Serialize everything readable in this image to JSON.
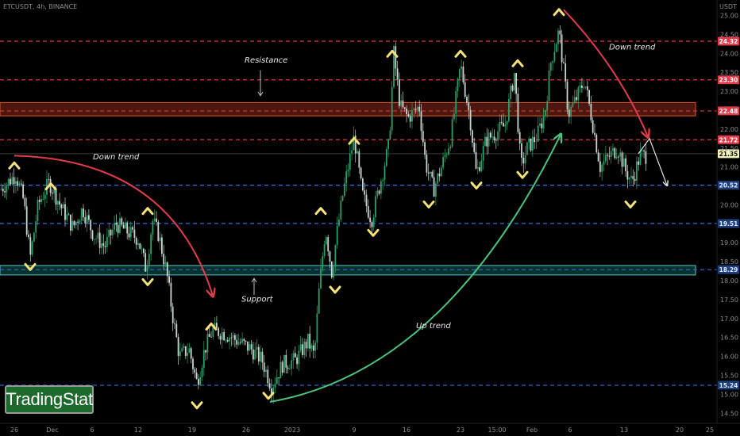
{
  "header": {
    "title": "ETCUSDT, 4h, BINANCE",
    "currency": "USDT"
  },
  "logo": {
    "text": "TradingStat"
  },
  "colors": {
    "background": "#000000",
    "candle_up": "#2e9e68",
    "candle_down": "#c8d6cf",
    "resistance": "#e03a3a",
    "support": "#2f6fd6",
    "zone_red_fill": "#5a1a10",
    "zone_green_fill": "#0a3a36",
    "arrow_red": "#e23c4c",
    "arrow_green": "#4cc27a",
    "pivot": "#f5e27a"
  },
  "chart_data": {
    "type": "candlestick",
    "symbol": "ETCUSDT",
    "timeframe": "4h",
    "exchange": "BINANCE",
    "y_range": [
      14.35,
      25.25
    ],
    "x_domain": [
      0,
      912
    ],
    "y_ticks": [
      "25.00",
      "24.50",
      "24.00",
      "23.50",
      "23.00",
      "22.50",
      "22.00",
      "21.50",
      "21.00",
      "20.50",
      "20.00",
      "19.50",
      "19.00",
      "18.50",
      "18.00",
      "17.50",
      "17.00",
      "16.50",
      "16.00",
      "15.50",
      "15.00",
      "14.50"
    ],
    "x_ticks": [
      {
        "label": "26",
        "x": 18
      },
      {
        "label": "Dec",
        "x": 66
      },
      {
        "label": "6",
        "x": 116
      },
      {
        "label": "12",
        "x": 174
      },
      {
        "label": "19",
        "x": 242
      },
      {
        "label": "26",
        "x": 310
      },
      {
        "label": "2023",
        "x": 368
      },
      {
        "label": "9",
        "x": 446
      },
      {
        "label": "16",
        "x": 512
      },
      {
        "label": "23",
        "x": 580
      },
      {
        "label": "15:00",
        "x": 626
      },
      {
        "label": "Feb",
        "x": 670
      },
      {
        "label": "6",
        "x": 718
      },
      {
        "label": "13",
        "x": 786
      },
      {
        "label": "20",
        "x": 856
      },
      {
        "label": "25",
        "x": 894
      }
    ],
    "price_levels": [
      {
        "value": 24.32,
        "label": "24.32",
        "kind": "resistance"
      },
      {
        "value": 23.3,
        "label": "23.30",
        "kind": "resistance"
      },
      {
        "value": 22.48,
        "label": "22.48",
        "kind": "resistance"
      },
      {
        "value": 21.72,
        "label": "21.72",
        "kind": "resistance"
      },
      {
        "value": 20.52,
        "label": "20.52",
        "kind": "support"
      },
      {
        "value": 19.51,
        "label": "19.51",
        "kind": "support"
      },
      {
        "value": 18.29,
        "label": "18.29",
        "kind": "support"
      },
      {
        "value": 15.24,
        "label": "15.24",
        "kind": "support"
      }
    ],
    "current_price": {
      "value": 21.35,
      "label": "21.35"
    },
    "zones": [
      {
        "kind": "resistance",
        "top": 22.7,
        "bottom": 22.35
      },
      {
        "kind": "support",
        "top": 18.4,
        "bottom": 18.15
      }
    ],
    "price_path": [
      [
        0,
        20.4
      ],
      [
        20,
        20.8
      ],
      [
        30,
        20.1
      ],
      [
        38,
        18.6
      ],
      [
        48,
        20.0
      ],
      [
        62,
        20.6
      ],
      [
        78,
        19.9
      ],
      [
        92,
        19.4
      ],
      [
        104,
        19.9
      ],
      [
        118,
        19.2
      ],
      [
        132,
        18.9
      ],
      [
        146,
        19.5
      ],
      [
        160,
        19.3
      ],
      [
        174,
        19.1
      ],
      [
        184,
        18.3
      ],
      [
        192,
        19.6
      ],
      [
        200,
        19.2
      ],
      [
        210,
        18.2
      ],
      [
        218,
        17.0
      ],
      [
        226,
        16.0
      ],
      [
        238,
        16.2
      ],
      [
        248,
        15.3
      ],
      [
        258,
        16.2
      ],
      [
        268,
        16.7
      ],
      [
        284,
        16.6
      ],
      [
        300,
        16.4
      ],
      [
        316,
        16.2
      ],
      [
        330,
        15.9
      ],
      [
        342,
        15.2
      ],
      [
        356,
        15.8
      ],
      [
        372,
        15.9
      ],
      [
        388,
        16.4
      ],
      [
        396,
        16.0
      ],
      [
        402,
        17.8
      ],
      [
        410,
        19.4
      ],
      [
        418,
        18.2
      ],
      [
        424,
        19.2
      ],
      [
        432,
        20.3
      ],
      [
        446,
        21.8
      ],
      [
        456,
        20.3
      ],
      [
        468,
        19.6
      ],
      [
        478,
        20.5
      ],
      [
        490,
        21.6
      ],
      [
        496,
        24.0
      ],
      [
        504,
        22.6
      ],
      [
        514,
        22.3
      ],
      [
        528,
        22.6
      ],
      [
        536,
        21.1
      ],
      [
        546,
        20.4
      ],
      [
        556,
        21.0
      ],
      [
        568,
        21.8
      ],
      [
        580,
        23.7
      ],
      [
        592,
        22.3
      ],
      [
        600,
        20.8
      ],
      [
        612,
        21.7
      ],
      [
        624,
        21.9
      ],
      [
        636,
        22.1
      ],
      [
        648,
        23.5
      ],
      [
        656,
        21.0
      ],
      [
        664,
        21.5
      ],
      [
        676,
        21.8
      ],
      [
        686,
        22.4
      ],
      [
        694,
        23.8
      ],
      [
        704,
        24.6
      ],
      [
        716,
        22.4
      ],
      [
        728,
        22.9
      ],
      [
        736,
        23.3
      ],
      [
        746,
        22.2
      ],
      [
        756,
        21.0
      ],
      [
        768,
        21.3
      ],
      [
        778,
        21.5
      ],
      [
        788,
        20.9
      ],
      [
        796,
        20.6
      ],
      [
        806,
        21.3
      ],
      [
        814,
        21.3
      ]
    ],
    "pivot_markers": [
      {
        "x": 18,
        "price": 21.05,
        "dir": "up"
      },
      {
        "x": 38,
        "price": 18.35,
        "dir": "down"
      },
      {
        "x": 64,
        "price": 20.5,
        "dir": "up"
      },
      {
        "x": 186,
        "price": 19.85,
        "dir": "up"
      },
      {
        "x": 186,
        "price": 17.95,
        "dir": "down"
      },
      {
        "x": 266,
        "price": 16.8,
        "dir": "up"
      },
      {
        "x": 248,
        "price": 14.7,
        "dir": "down"
      },
      {
        "x": 338,
        "price": 14.95,
        "dir": "down"
      },
      {
        "x": 404,
        "price": 19.85,
        "dir": "up"
      },
      {
        "x": 422,
        "price": 17.75,
        "dir": "down"
      },
      {
        "x": 446,
        "price": 21.7,
        "dir": "up"
      },
      {
        "x": 470,
        "price": 19.25,
        "dir": "down"
      },
      {
        "x": 494,
        "price": 24.0,
        "dir": "up"
      },
      {
        "x": 540,
        "price": 20.0,
        "dir": "down"
      },
      {
        "x": 580,
        "price": 24.0,
        "dir": "up"
      },
      {
        "x": 600,
        "price": 20.5,
        "dir": "down"
      },
      {
        "x": 652,
        "price": 23.75,
        "dir": "up"
      },
      {
        "x": 658,
        "price": 20.78,
        "dir": "down"
      },
      {
        "x": 704,
        "price": 25.1,
        "dir": "up"
      },
      {
        "x": 794,
        "price": 20.0,
        "dir": "down"
      }
    ],
    "annotations": [
      {
        "text": "Resistance",
        "x": 308,
        "price": 23.75
      },
      {
        "text": "Down trend",
        "x": 767,
        "price": 24.1
      },
      {
        "text": "Down trend",
        "x": 117,
        "price": 21.2
      },
      {
        "text": "Support",
        "x": 304,
        "price": 17.45
      },
      {
        "text": "Up trend",
        "x": 524,
        "price": 16.75
      }
    ],
    "trend_arrows": [
      {
        "kind": "down",
        "from": [
          18,
          21.3
        ],
        "ctrl": [
          215,
          21.2
        ],
        "to": [
          268,
          17.6
        ]
      },
      {
        "kind": "down",
        "from": [
          710,
          25.15
        ],
        "ctrl": [
          780,
          23.6
        ],
        "to": [
          816,
          21.8
        ]
      },
      {
        "kind": "up",
        "from": [
          340,
          14.8
        ],
        "ctrl": [
          560,
          15.6
        ],
        "to": [
          706,
          21.85
        ]
      }
    ],
    "projection": [
      [
        804,
        21.35
      ],
      [
        818,
        21.75
      ],
      [
        840,
        20.52
      ]
    ]
  }
}
